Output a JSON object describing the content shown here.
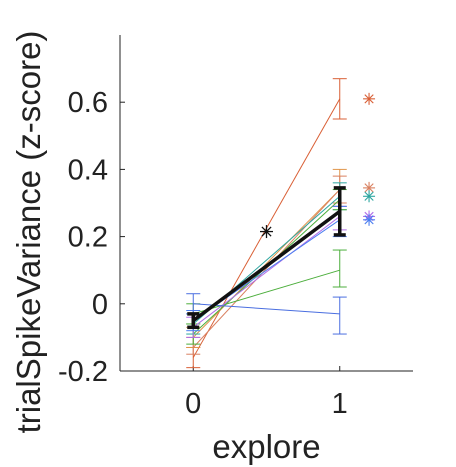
{
  "chart_data": {
    "type": "line",
    "xlabel": "explore",
    "ylabel": "trialSpikeVariance (z-score)",
    "xlim": [
      -0.5,
      1.5
    ],
    "ylim": [
      -0.2,
      0.8
    ],
    "x_ticks": [
      0,
      1
    ],
    "y_ticks": [
      -0.2,
      0,
      0.2,
      0.4,
      0.6
    ],
    "y_tick_labels": [
      "-0.2",
      "0",
      "0.2",
      "0.4",
      "0.6"
    ],
    "series": [
      {
        "color": "#d95f35",
        "x": [
          0,
          1
        ],
        "y": [
          -0.16,
          0.61
        ],
        "err_low": [
          -0.19,
          0.55
        ],
        "err_high": [
          -0.13,
          0.67
        ],
        "marker": {
          "x": 1.2,
          "y": 0.61
        }
      },
      {
        "color": "#e0954a",
        "x": [
          0,
          1
        ],
        "y": [
          -0.1,
          0.34
        ],
        "err_low": [
          -0.13,
          0.29
        ],
        "err_high": [
          -0.07,
          0.4
        ]
      },
      {
        "color": "#d98060",
        "x": [
          0,
          1
        ],
        "y": [
          -0.13,
          0.34
        ],
        "err_low": [
          -0.15,
          0.3
        ],
        "err_high": [
          -0.1,
          0.38
        ],
        "marker": {
          "x": 1.2,
          "y": 0.345
        }
      },
      {
        "color": "#2ca6a0",
        "x": [
          0,
          1
        ],
        "y": [
          -0.06,
          0.32
        ],
        "err_low": [
          -0.09,
          0.28
        ],
        "err_high": [
          -0.03,
          0.36
        ],
        "marker": {
          "x": 1.2,
          "y": 0.32
        }
      },
      {
        "color": "#4cae3c",
        "x": [
          0,
          1
        ],
        "y": [
          -0.09,
          0.31
        ],
        "err_low": [
          -0.12,
          0.28
        ],
        "err_high": [
          -0.06,
          0.34
        ]
      },
      {
        "color": "#4cae3c",
        "x": [
          0,
          1
        ],
        "y": [
          -0.03,
          0.1
        ],
        "err_low": [
          -0.06,
          0.05
        ],
        "err_high": [
          0.0,
          0.16
        ]
      },
      {
        "color": "#b06ee8",
        "x": [
          0,
          1
        ],
        "y": [
          -0.07,
          0.26
        ],
        "err_low": [
          -0.1,
          0.22
        ],
        "err_high": [
          -0.04,
          0.29
        ],
        "marker": {
          "x": 1.2,
          "y": 0.26
        }
      },
      {
        "color": "#4a7ef0",
        "x": [
          0,
          1
        ],
        "y": [
          -0.05,
          0.25
        ],
        "err_low": [
          -0.08,
          0.2
        ],
        "err_high": [
          -0.02,
          0.29
        ],
        "marker": {
          "x": 1.2,
          "y": 0.25
        }
      },
      {
        "color": "#4a6ee0",
        "x": [
          0,
          1
        ],
        "y": [
          0.0,
          -0.03
        ],
        "err_low": [
          -0.03,
          -0.09
        ],
        "err_high": [
          0.03,
          0.02
        ]
      }
    ],
    "mean_series": {
      "color": "#111111",
      "x": [
        0,
        1
      ],
      "y": [
        -0.05,
        0.275
      ],
      "err_low": [
        -0.07,
        0.205
      ],
      "err_high": [
        -0.03,
        0.345
      ],
      "marker": {
        "x": 0.5,
        "y": 0.215
      }
    }
  }
}
